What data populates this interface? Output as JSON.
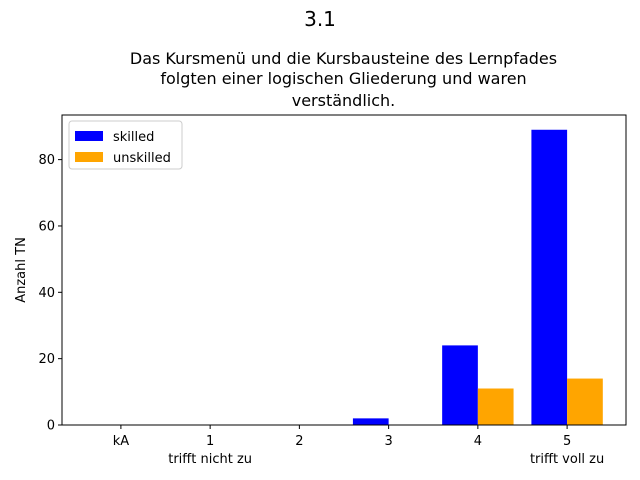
{
  "chart_data": {
    "type": "bar",
    "suptitle": "3.1",
    "title_lines": [
      "Das Kursmenü und die Kursbausteine des Lernpfades",
      "folgten einer logischen Gliederung und waren",
      "verständlich."
    ],
    "xlabel": "",
    "ylabel": "Anzahl TN",
    "categories": [
      "kA",
      "1",
      "2",
      "3",
      "4",
      "5"
    ],
    "category_sublabels": [
      "",
      "trifft nicht zu",
      "",
      "",
      "",
      "trifft voll zu"
    ],
    "series": [
      {
        "name": "skilled",
        "color": "#0000ff",
        "values": [
          0,
          0,
          0,
          2,
          24,
          89
        ]
      },
      {
        "name": "unskilled",
        "color": "#ffa500",
        "values": [
          0,
          0,
          0,
          0,
          11,
          14
        ]
      }
    ],
    "ylim": [
      0,
      93.45
    ],
    "yticks": [
      0,
      20,
      40,
      60,
      80
    ],
    "grid": false,
    "legend_position": "top-left"
  }
}
